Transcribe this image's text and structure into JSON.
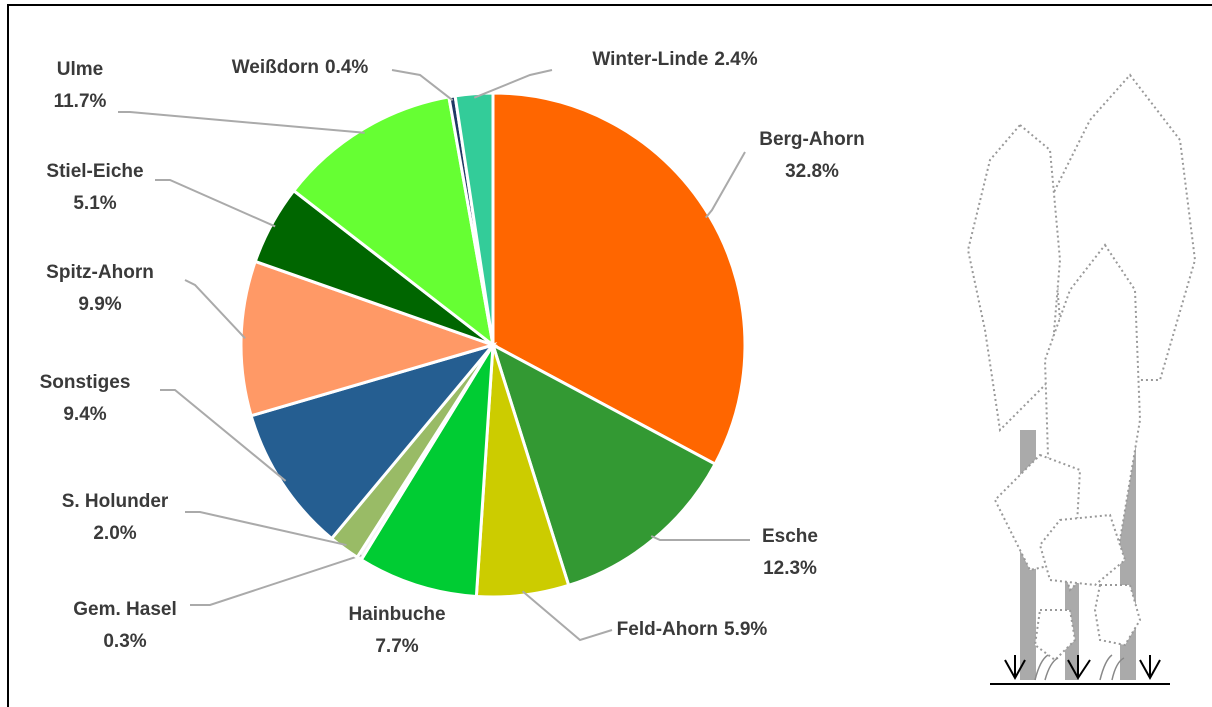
{
  "chart_data": {
    "type": "pie",
    "categories": [
      "Berg-Ahorn",
      "Esche",
      "Feld-Ahorn",
      "Hainbuche",
      "Gem. Hasel",
      "S. Holunder",
      "Sonstiges",
      "Spitz-Ahorn",
      "Stiel-Eiche",
      "Ulme",
      "Weißdorn",
      "Winter-Linde"
    ],
    "values": [
      32.8,
      12.3,
      5.9,
      7.7,
      0.3,
      2.0,
      9.4,
      9.9,
      5.1,
      11.7,
      0.4,
      2.4
    ],
    "value_labels": [
      "32.8%",
      "12.3%",
      "5.9%",
      "7.7%",
      "0.3%",
      "2.0%",
      "9.4%",
      "9.9%",
      "5.1%",
      "11.7%",
      "0.4%",
      "2.4%"
    ],
    "colors": [
      "#ff6600",
      "#339933",
      "#cccc00",
      "#00cc33",
      "#f2f2f2",
      "#99bb66",
      "#255e91",
      "#ff9966",
      "#006600",
      "#66ff33",
      "#1f3864",
      "#33cc99"
    ]
  }
}
